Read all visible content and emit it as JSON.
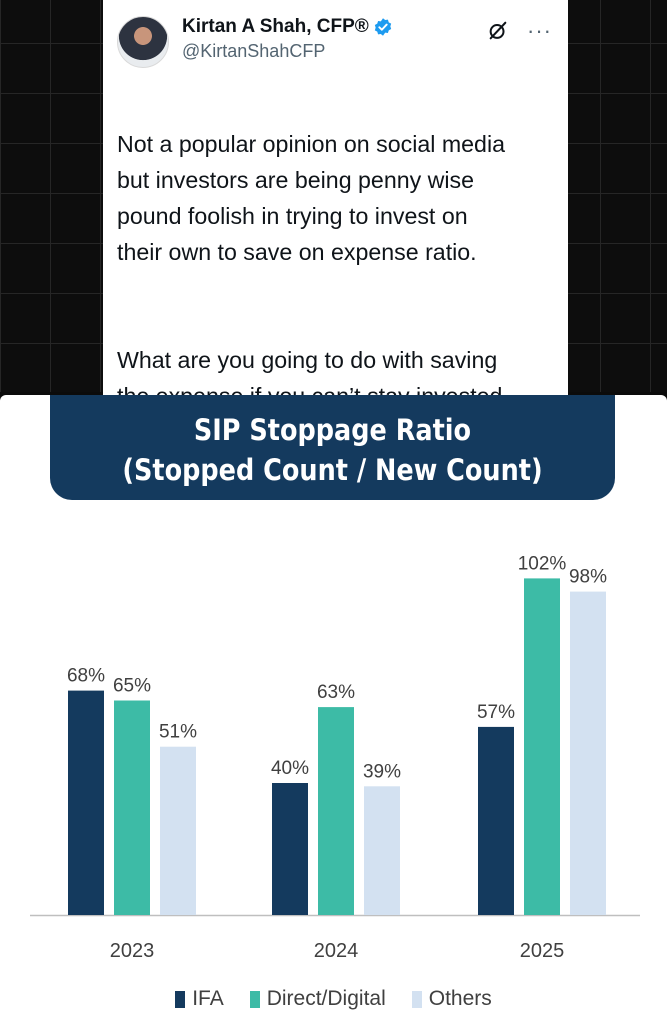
{
  "tweet": {
    "display_name": "Kirtan A Shah, CFP®",
    "handle": "@KirtanShahCFP",
    "paragraphs": [
      "Not a popular opinion on social media\nbut investors are being penny wise\npound foolish in trying to invest on\ntheir own to save on expense ratio.",
      "What are you going to do with saving\nthe expense if you can’t stay invested\n& can’t make the return only?"
    ],
    "verified_icon": "verified-badge-icon",
    "grok_icon": "grok-icon",
    "more_label": "···"
  },
  "chart": {
    "title_line1": "SIP Stoppage Ratio",
    "title_line2": "(Stopped Count / New Count)"
  },
  "chart_data": {
    "type": "bar",
    "title": "SIP Stoppage Ratio (Stopped Count / New Count)",
    "categories": [
      "2023",
      "2024",
      "2025"
    ],
    "series": [
      {
        "name": "IFA",
        "values": [
          68,
          40,
          57
        ],
        "labels": [
          "68%",
          "40%",
          "57%"
        ],
        "color": "#143a5e"
      },
      {
        "name": "Direct/Digital",
        "values": [
          65,
          63,
          102
        ],
        "labels": [
          "65%",
          "63%",
          "102%"
        ],
        "color": "#3dbba6"
      },
      {
        "name": "Others",
        "values": [
          51,
          39,
          98
        ],
        "labels": [
          "51%",
          "39%",
          "98%"
        ],
        "color": "#d3e1f1"
      }
    ],
    "ylim": [
      0,
      110
    ],
    "grid": false,
    "legend_position": "bottom",
    "axis_color": "#bfbfbf",
    "label_color": "#404040"
  }
}
